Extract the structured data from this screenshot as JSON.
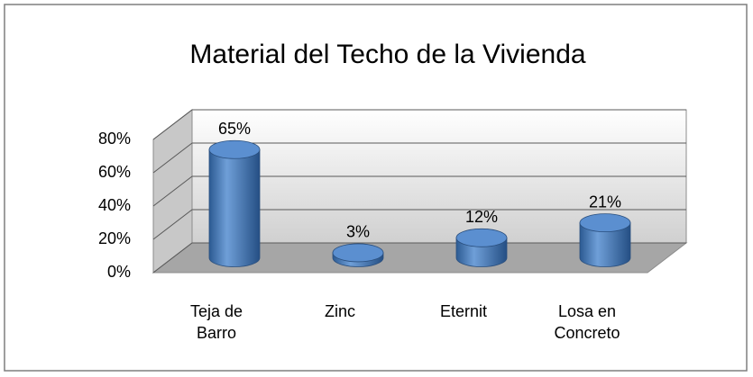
{
  "chart_data": {
    "type": "bar3d",
    "title": "Material del Techo de la Vivienda",
    "categories": [
      "Teja de Barro",
      "Zinc",
      "Eternit",
      "Losa en Concreto"
    ],
    "values": [
      65,
      3,
      12,
      21
    ],
    "value_labels": [
      "65%",
      "3%",
      "12%",
      "21%"
    ],
    "color": "#4f81bd",
    "ylim": [
      0,
      80
    ],
    "yticks": [
      {
        "value": 0,
        "label": "0%"
      },
      {
        "value": 20,
        "label": "20%"
      },
      {
        "value": 40,
        "label": "40%"
      },
      {
        "value": 60,
        "label": "60%"
      },
      {
        "value": 80,
        "label": "80%"
      }
    ],
    "grid": true
  }
}
